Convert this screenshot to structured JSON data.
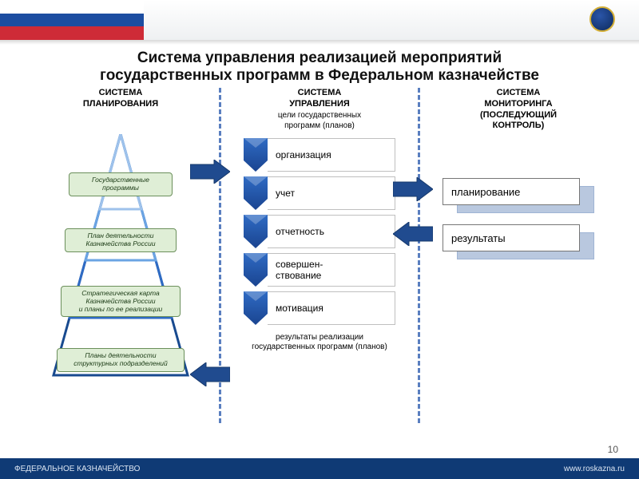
{
  "colors": {
    "divider": "#5a7fc0",
    "pyramid_box_bg": "#dfeed6",
    "pyramid_box_border": "#6b8f5b",
    "arrow_fill": "#204b8f",
    "arrow_stroke": "#16386b",
    "chevron_gradient_top": "#2f6bc4",
    "chevron_gradient_bottom": "#1a4490",
    "right_shadow": "#b9c8df",
    "footer_bg": "#0f3a75",
    "flag_blue": "#1c4da1",
    "flag_red": "#ce2b37",
    "pyramid_stroke_1": "#184a8f",
    "pyramid_stroke_2": "#2f6bc4",
    "pyramid_stroke_3": "#6ba4e3",
    "pyramid_stroke_4": "#9ec2eb"
  },
  "title": {
    "line1": "Система управления реализацией мероприятий",
    "line2": "государственных программ в Федеральном казначействе"
  },
  "columns": {
    "planning": {
      "head": "СИСТЕМА\nПЛАНИРОВАНИЯ",
      "pyramid": [
        "Государственные программы",
        "План деятельности\nКазначейства России",
        "Стратегическая карта\nКазначейства России\nи планы по ее реализации",
        "Планы деятельности\nструктурных подразделений"
      ]
    },
    "management": {
      "head": "СИСТЕМА\nУПРАВЛЕНИЯ",
      "sub": "цели государственных\nпрограмм (планов)",
      "items": [
        "организация",
        "учет",
        "отчетность",
        "совершен-\nствование",
        "мотивация"
      ],
      "bottom": "результаты  реализации\nгосударственных программ (планов)"
    },
    "monitoring": {
      "head": "СИСТЕМА\nМОНИТОРИНГА\n(ПОСЛЕДУЮЩИЙ\nКОНТРОЛЬ)",
      "boxes": [
        "планирование",
        "результаты"
      ]
    }
  },
  "footer": {
    "left": "ФЕДЕРАЛЬНОЕ КАЗНАЧЕЙСТВО",
    "right": "www.roskazna.ru"
  },
  "page_number": "10"
}
